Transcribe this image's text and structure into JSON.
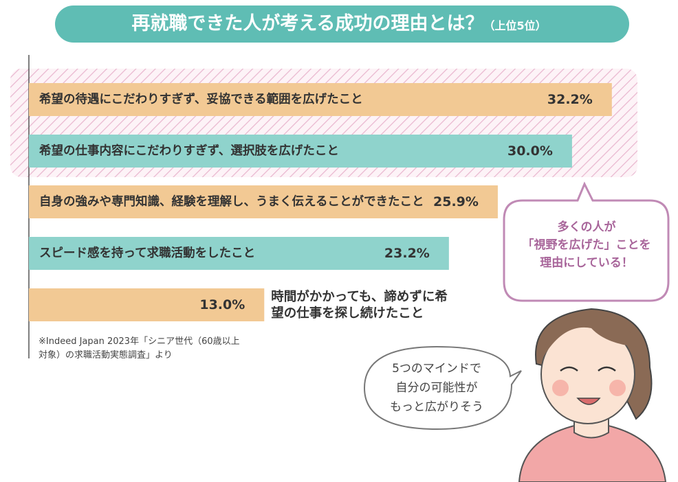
{
  "chart_data": {
    "type": "bar",
    "orientation": "horizontal",
    "title": "再就職できた人が考える成功の理由とは？",
    "subtitle": "（上位5位）",
    "categories": [
      "希望の待遇にこだわりすぎず、妥協できる範囲を広げたこと",
      "希望の仕事内容にこだわりすぎず、選択肢を広げたこと",
      "自身の強みや専門知識、経験を理解し、うまく伝えることができたこと",
      "スピード感を持って求職活動をしたこと",
      "時間がかかっても、諦めずに希望の仕事を探し続けたこと"
    ],
    "values": [
      32.2,
      30.0,
      25.9,
      23.2,
      13.0
    ],
    "value_labels": [
      "32.2%",
      "30.0%",
      "25.9%",
      "23.2%",
      "13.0%"
    ],
    "colors": [
      "#f2c994",
      "#8fd3cc",
      "#f2c994",
      "#8fd3cc",
      "#f2c994"
    ],
    "note": "※Indeed Japan 2023年「シニア世代（60歳以上対象）の求職活動実態調査」より"
  },
  "callouts": [
    {
      "lines": [
        "多くの人が",
        "「視野を広げた」ことを",
        "理由にしている！"
      ]
    },
    {
      "lines": [
        "5つのマインドで",
        "自分の可能性が",
        "もっと広がりそう"
      ]
    }
  ]
}
